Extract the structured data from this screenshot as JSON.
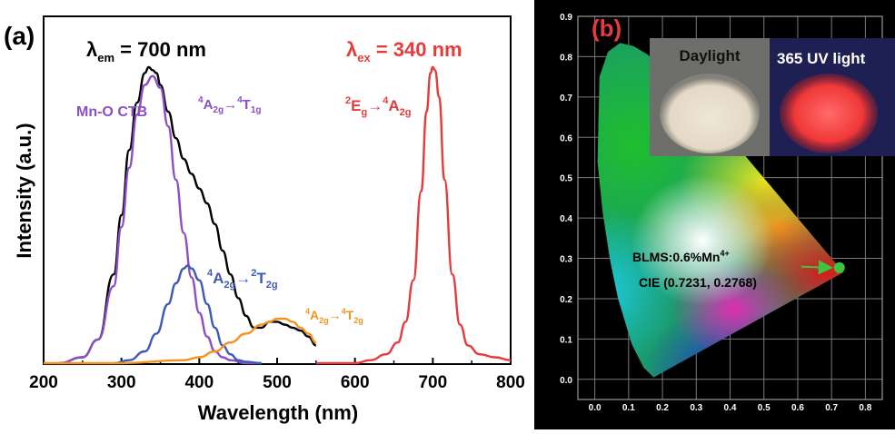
{
  "chart_data": [
    {
      "type": "line",
      "panel_label": "(a)",
      "xlabel": "Wavelength (nm)",
      "ylabel": "Intensity (a.u.)",
      "xlim": [
        200,
        800
      ],
      "x_ticks": [
        "200",
        "300",
        "400",
        "500",
        "600",
        "700",
        "800"
      ],
      "grid": false,
      "annotations": {
        "em": {
          "base": "λ",
          "sub": "em",
          "rest": " = 700 nm"
        },
        "ex": {
          "base": "λ",
          "sub": "ex",
          "rest": " = 340 nm"
        },
        "ctb": "Mn-O CTB",
        "t1g": {
          "p": [
            "4",
            "A",
            "2g",
            "→",
            "4",
            "T",
            "1g"
          ]
        },
        "t2g2": {
          "p": [
            "4",
            "A",
            "2g",
            "→",
            "2",
            "T",
            "2g"
          ]
        },
        "t2g4": {
          "p": [
            "4",
            "A",
            "2g",
            "→",
            "4",
            "T",
            "2g"
          ]
        },
        "eg": {
          "p": [
            "2",
            "E",
            "g",
            "→",
            "4",
            "A",
            "2g"
          ]
        }
      },
      "series": [
        {
          "color": "#000000",
          "x": [
            220,
            250,
            270,
            290,
            300,
            310,
            320,
            330,
            335,
            340,
            345,
            350,
            360,
            370,
            380,
            390,
            400,
            410,
            420,
            430,
            440,
            450,
            460,
            470,
            480,
            490,
            500,
            510,
            520,
            530,
            540,
            550
          ],
          "y": [
            0,
            0.02,
            0.08,
            0.3,
            0.5,
            0.72,
            0.88,
            0.98,
            1.0,
            0.99,
            0.98,
            0.94,
            0.85,
            0.76,
            0.69,
            0.64,
            0.59,
            0.54,
            0.47,
            0.38,
            0.3,
            0.22,
            0.16,
            0.12,
            0.12,
            0.14,
            0.14,
            0.13,
            0.12,
            0.11,
            0.09,
            0.06
          ]
        },
        {
          "color": "#8a4fc8",
          "x": [
            220,
            250,
            270,
            290,
            300,
            310,
            320,
            330,
            340,
            350,
            360,
            370,
            380,
            390,
            400,
            410,
            420,
            430,
            440,
            460,
            480
          ],
          "y": [
            0,
            0.02,
            0.08,
            0.26,
            0.46,
            0.66,
            0.84,
            0.94,
            0.97,
            0.93,
            0.8,
            0.62,
            0.44,
            0.29,
            0.17,
            0.09,
            0.04,
            0.02,
            0.01,
            0,
            0
          ]
        },
        {
          "color": "#3f58b9",
          "x": [
            290,
            310,
            330,
            345,
            360,
            370,
            380,
            385,
            390,
            400,
            410,
            420,
            430,
            440,
            450,
            460,
            480
          ],
          "y": [
            0,
            0.01,
            0.04,
            0.1,
            0.2,
            0.27,
            0.32,
            0.33,
            0.32,
            0.28,
            0.2,
            0.12,
            0.06,
            0.03,
            0.01,
            0.005,
            0
          ]
        },
        {
          "color": "#f4921e",
          "x": [
            200,
            300,
            380,
            400,
            420,
            440,
            460,
            480,
            490,
            500,
            510,
            520,
            530,
            540,
            550
          ],
          "y": [
            0,
            0,
            0.01,
            0.02,
            0.04,
            0.07,
            0.1,
            0.13,
            0.14,
            0.15,
            0.15,
            0.14,
            0.12,
            0.1,
            0.07
          ]
        },
        {
          "color": "#e83a3a",
          "x": [
            550,
            600,
            620,
            640,
            655,
            665,
            675,
            685,
            692,
            697,
            700,
            703,
            708,
            715,
            725,
            735,
            745,
            760,
            780,
            800
          ],
          "y": [
            0,
            0,
            0.01,
            0.03,
            0.07,
            0.14,
            0.28,
            0.58,
            0.85,
            0.98,
            1.0,
            0.99,
            0.9,
            0.62,
            0.3,
            0.13,
            0.06,
            0.03,
            0.02,
            0.01
          ]
        }
      ]
    },
    {
      "type": "scatter",
      "panel_label": "(b)",
      "xlim": [
        -0.05,
        0.85
      ],
      "ylim": [
        -0.05,
        0.9
      ],
      "x_ticks": [
        "0.0",
        "0.1",
        "0.2",
        "0.3",
        "0.4",
        "0.5",
        "0.6",
        "0.7",
        "0.8"
      ],
      "y_ticks": [
        "0.0",
        "0.1",
        "0.2",
        "0.3",
        "0.4",
        "0.5",
        "0.6",
        "0.7",
        "0.8",
        "0.9"
      ],
      "grid": true,
      "point": {
        "x": 0.7231,
        "y": 0.2768,
        "color": "#3ec43e"
      },
      "label1": "BLMS:0.6%Mn",
      "label1_sup": "4+",
      "label2": "CIE (0.7231, 0.2768)",
      "inset": {
        "daylight": "Daylight",
        "uv": "365 UV light"
      }
    }
  ]
}
